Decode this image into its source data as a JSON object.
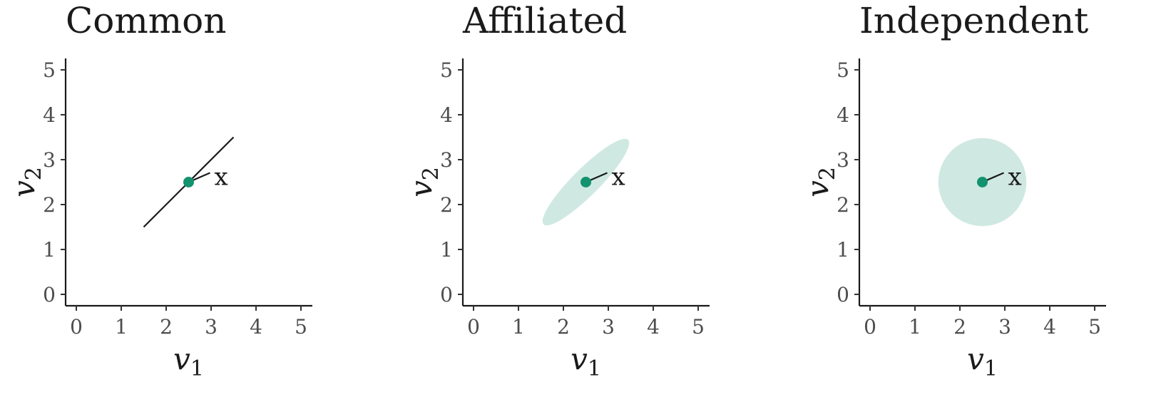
{
  "chart_data": [
    {
      "type": "scatter",
      "title": "Common",
      "xlabel": {
        "base": "v",
        "sub": "1"
      },
      "ylabel": {
        "base": "v",
        "sub": "2"
      },
      "xlim": [
        0,
        5
      ],
      "ylim": [
        0,
        5
      ],
      "xticks": [
        "0",
        "1",
        "2",
        "3",
        "4",
        "5"
      ],
      "yticks": [
        "0",
        "1",
        "2",
        "3",
        "4",
        "5"
      ],
      "grid": false,
      "region": {
        "shape": "line",
        "from": [
          1.5,
          1.5
        ],
        "to": [
          3.5,
          3.5
        ]
      },
      "point": {
        "x": 2.5,
        "y": 2.5,
        "label": "x"
      },
      "colors": {
        "point": "#139270",
        "region": "#cfe9e2",
        "axis": "#1a1a1a"
      }
    },
    {
      "type": "scatter",
      "title": "Affiliated",
      "xlabel": {
        "base": "v",
        "sub": "1"
      },
      "ylabel": {
        "base": "v",
        "sub": "2"
      },
      "xlim": [
        0,
        5
      ],
      "ylim": [
        0,
        5
      ],
      "xticks": [
        "0",
        "1",
        "2",
        "3",
        "4",
        "5"
      ],
      "yticks": [
        "0",
        "1",
        "2",
        "3",
        "4",
        "5"
      ],
      "grid": false,
      "region": {
        "shape": "ellipse",
        "center": [
          2.5,
          2.5
        ],
        "major_half_length": 1.33,
        "minor_half_length": 0.3,
        "angle_deg": 45
      },
      "point": {
        "x": 2.5,
        "y": 2.5,
        "label": "x"
      },
      "colors": {
        "point": "#139270",
        "region": "#cfe9e2",
        "axis": "#1a1a1a"
      }
    },
    {
      "type": "scatter",
      "title": "Independent",
      "xlabel": {
        "base": "v",
        "sub": "1"
      },
      "ylabel": {
        "base": "v",
        "sub": "2"
      },
      "xlim": [
        0,
        5
      ],
      "ylim": [
        0,
        5
      ],
      "xticks": [
        "0",
        "1",
        "2",
        "3",
        "4",
        "5"
      ],
      "yticks": [
        "0",
        "1",
        "2",
        "3",
        "4",
        "5"
      ],
      "grid": false,
      "region": {
        "shape": "circle",
        "center": [
          2.5,
          2.5
        ],
        "radius": 0.98
      },
      "point": {
        "x": 2.5,
        "y": 2.5,
        "label": "x"
      },
      "colors": {
        "point": "#139270",
        "region": "#cfe9e2",
        "axis": "#1a1a1a"
      }
    }
  ]
}
